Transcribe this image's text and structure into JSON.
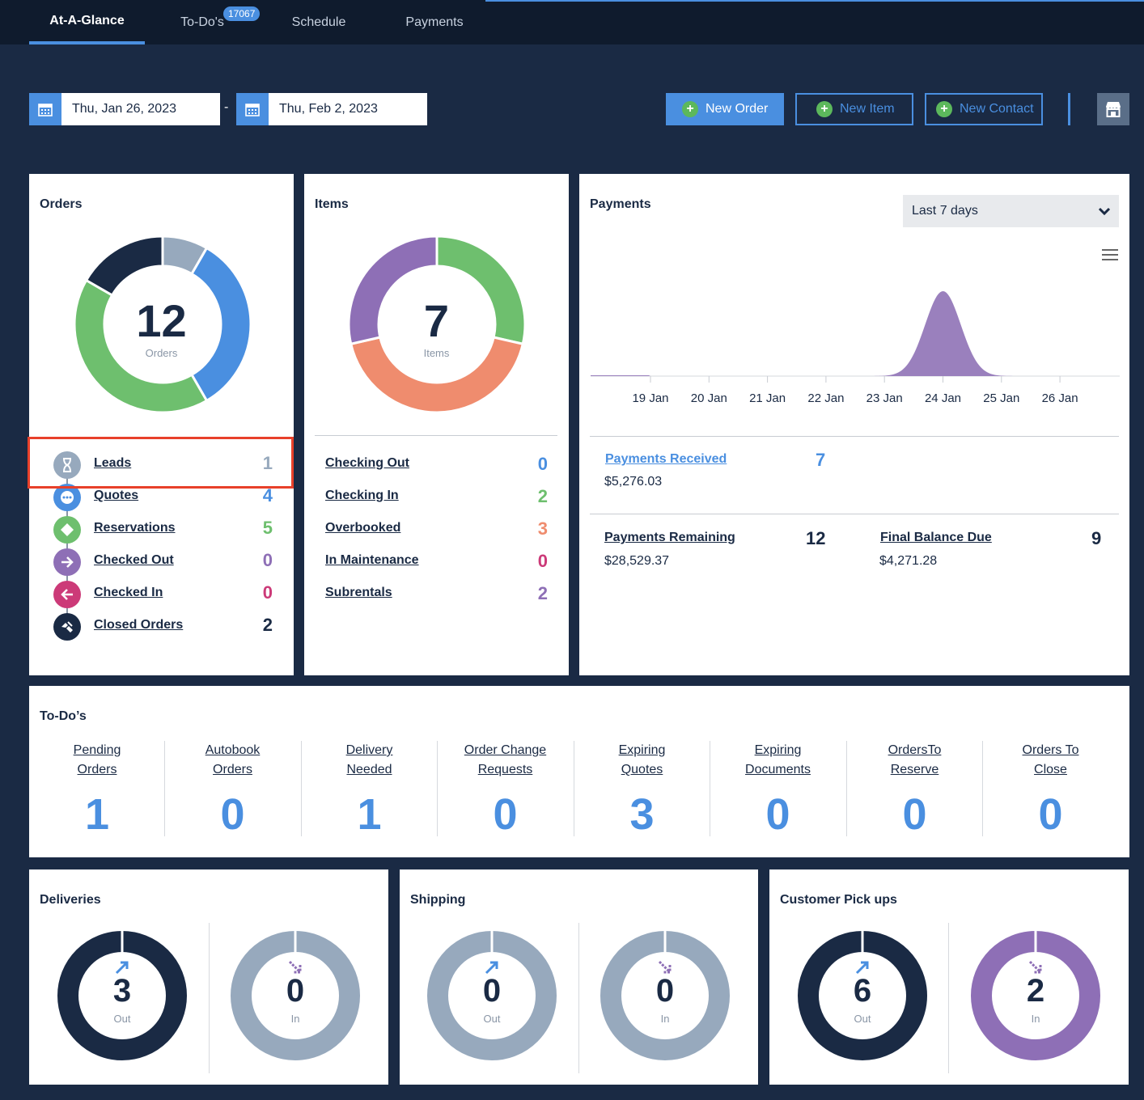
{
  "nav": {
    "tabs": [
      {
        "label": "At-A-Glance"
      },
      {
        "label": "To-Do's",
        "badge": "17067"
      },
      {
        "label": "Schedule"
      },
      {
        "label": "Payments"
      }
    ]
  },
  "toolbar": {
    "start_date": "Thu, Jan 26, 2023",
    "end_date": "Thu, Feb 2, 2023",
    "date_separator": "-",
    "new_order": "New Order",
    "new_item": "New Item",
    "new_contact": "New Contact",
    "plus_glyph": "+"
  },
  "orders": {
    "title": "Orders",
    "total": "12",
    "total_label": "Orders",
    "rows": [
      {
        "label": "Leads",
        "value": "1",
        "color": "#97a9bd",
        "icon": "hourglass-icon"
      },
      {
        "label": "Quotes",
        "value": "4",
        "color": "#4a8fe0",
        "icon": "ellipsis-icon"
      },
      {
        "label": "Reservations",
        "value": "5",
        "color": "#6ebf6e",
        "icon": "tag-icon"
      },
      {
        "label": "Checked Out",
        "value": "0",
        "color": "#8e6fb6",
        "icon": "arrow-right-icon"
      },
      {
        "label": "Checked In",
        "value": "0",
        "color": "#cc3a78",
        "icon": "arrow-left-icon"
      },
      {
        "label": "Closed Orders",
        "value": "2",
        "color": "#1a2a44",
        "icon": "handshake-icon"
      }
    ]
  },
  "items": {
    "title": "Items",
    "total": "7",
    "total_label": "Items",
    "rows": [
      {
        "label": "Checking Out",
        "value": "0",
        "color": "#4a8fe0"
      },
      {
        "label": "Checking In",
        "value": "2",
        "color": "#6ebf6e"
      },
      {
        "label": "Overbooked",
        "value": "3",
        "color": "#ef8c6e"
      },
      {
        "label": "In Maintenance",
        "value": "0",
        "color": "#cc3a78"
      },
      {
        "label": "Subrentals",
        "value": "2",
        "color": "#8e6fb6"
      }
    ],
    "slice_colors": [
      "#6ebf6e",
      "#ef8c6e",
      "#8e6fb6"
    ]
  },
  "payments": {
    "title": "Payments",
    "range_select": "Last 7 days",
    "chart_data": {
      "type": "area",
      "x": [
        "19 Jan",
        "20 Jan",
        "21 Jan",
        "22 Jan",
        "23 Jan",
        "24 Jan",
        "25 Jan",
        "26 Jan"
      ],
      "values": [
        0,
        0,
        0,
        0,
        0,
        5276.03,
        0,
        0
      ],
      "color": "#9a80bd"
    },
    "received_label": "Payments Received",
    "received_amount": "$5,276.03",
    "received_count": "7",
    "remaining_label": "Payments Remaining",
    "remaining_amount": "$28,529.37",
    "remaining_count": "12",
    "final_label": "Final Balance Due",
    "final_amount": "$4,271.28",
    "final_count": "9"
  },
  "todos": {
    "title": "To-Do’s",
    "columns": [
      {
        "line1": "Pending",
        "line2": "Orders",
        "value": "1"
      },
      {
        "line1": "Autobook",
        "line2": "Orders",
        "value": "0"
      },
      {
        "line1": "Delivery",
        "line2": "Needed",
        "value": "1"
      },
      {
        "line1": "Order Change",
        "line2": "Requests",
        "value": "0"
      },
      {
        "line1": "Expiring",
        "line2": "Quotes",
        "value": "3"
      },
      {
        "line1": "Expiring",
        "line2": "Documents",
        "value": "0"
      },
      {
        "line1": "OrdersTo",
        "line2": "Reserve",
        "value": "0"
      },
      {
        "line1": "Orders To",
        "line2": "Close",
        "value": "0"
      }
    ]
  },
  "deliveries": {
    "title": "Deliveries",
    "out": "3",
    "out_label": "Out",
    "in": "0",
    "in_label": "In"
  },
  "shipping": {
    "title": "Shipping",
    "out": "0",
    "out_label": "Out",
    "in": "0",
    "in_label": "In"
  },
  "pickups": {
    "title": "Customer Pick ups",
    "out": "6",
    "out_label": "Out",
    "in": "2",
    "in_label": "In"
  },
  "colors": {
    "accent": "#4a8fe0",
    "navy": "#1a2a44",
    "grey": "#97a9bd",
    "purple": "#8e6fb6",
    "green": "#5cb85c"
  }
}
